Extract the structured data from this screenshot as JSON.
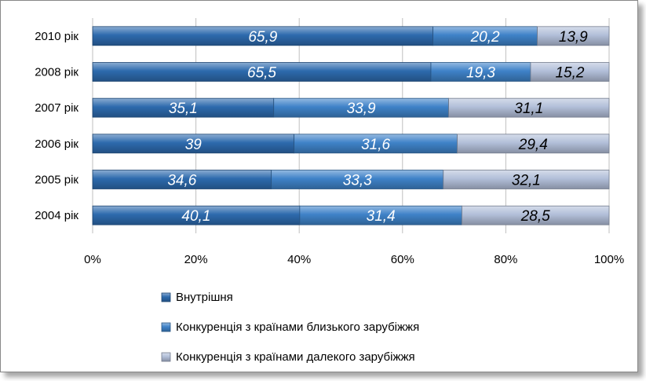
{
  "chart_data": {
    "type": "bar",
    "orientation": "horizontal",
    "stacked": "percent",
    "categories": [
      "2010 рік",
      "2008 рік",
      "2007 рік",
      "2006 рік",
      "2005 рік",
      "2004 рік"
    ],
    "series": [
      {
        "name": "Внутрішня",
        "values": [
          65.9,
          65.5,
          35.1,
          39,
          34.6,
          40.1
        ],
        "color": "#2d6aad"
      },
      {
        "name": "Конкуренція з країнами близького зарубіжжя",
        "values": [
          20.2,
          19.3,
          33.9,
          31.6,
          33.3,
          31.4
        ],
        "color": "#3f82c8"
      },
      {
        "name": "Конкуренція з країнами далекого зарубіжжя",
        "values": [
          13.9,
          15.2,
          31.1,
          29.4,
          32.1,
          28.5
        ],
        "color": "#b2bfd9"
      }
    ],
    "data_labels": [
      [
        "65,9",
        "20,2",
        "13,9"
      ],
      [
        "65,5",
        "19,3",
        "15,2"
      ],
      [
        "35,1",
        "33,9",
        "31,1"
      ],
      [
        "39",
        "31,6",
        "29,4"
      ],
      [
        "34,6",
        "33,3",
        "32,1"
      ],
      [
        "40,1",
        "31,4",
        "28,5"
      ]
    ],
    "x_ticks": [
      "0%",
      "20%",
      "40%",
      "60%",
      "80%",
      "100%"
    ],
    "xlim": [
      0,
      100
    ],
    "title": "",
    "xlabel": "",
    "ylabel": "",
    "grid": "vertical",
    "legend_position": "bottom"
  }
}
